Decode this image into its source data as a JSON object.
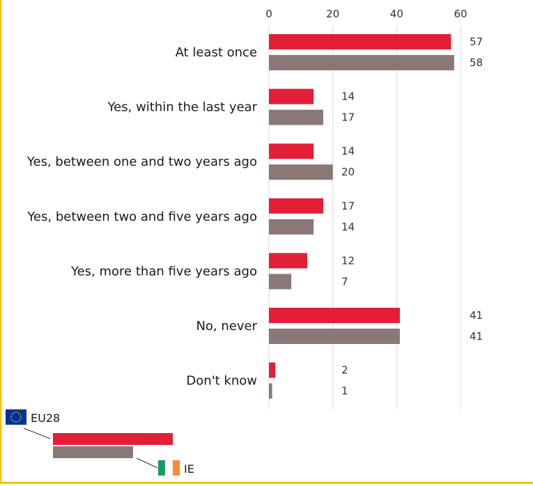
{
  "chart_data": {
    "type": "bar",
    "orientation": "horizontal",
    "categories": [
      "At least once",
      "Yes, within the last year",
      "Yes, between one and two years ago",
      "Yes, between two and five years ago",
      "Yes, more than five years ago",
      "No, never",
      "Don't know"
    ],
    "series": [
      {
        "name": "EU28",
        "color": "#e31e37",
        "values": [
          57,
          14,
          14,
          17,
          12,
          41,
          2
        ]
      },
      {
        "name": "IE",
        "color": "#8a7777",
        "values": [
          58,
          17,
          20,
          14,
          7,
          41,
          1
        ]
      }
    ],
    "xlim": [
      0,
      60
    ],
    "xticks": [
      0,
      20,
      40,
      60
    ],
    "grid": true,
    "legend": "bottom-left"
  },
  "colors": {
    "border": "#f5c400",
    "eu_flag_blue": "#003399",
    "eu_flag_stars": "#ffcc00",
    "ie_green": "#169b62",
    "ie_orange": "#ff883e"
  }
}
